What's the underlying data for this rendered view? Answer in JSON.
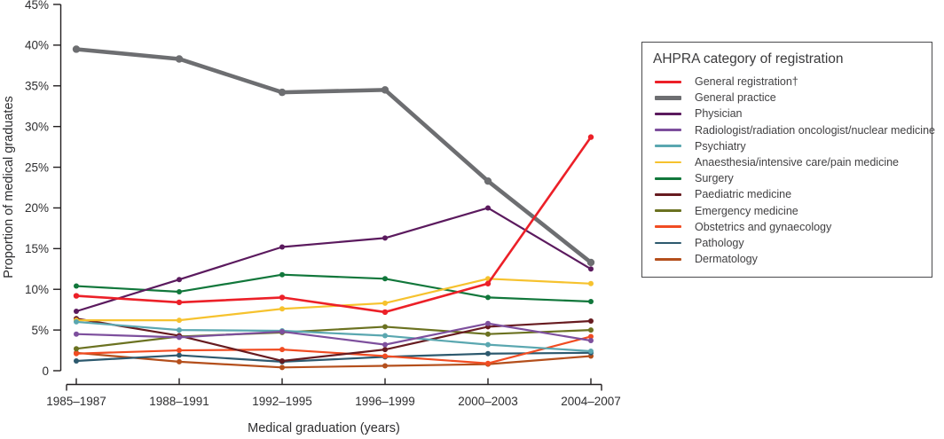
{
  "chart_data": {
    "type": "line",
    "title": "",
    "xlabel": "Medical graduation (years)",
    "ylabel": "Proportion of medical graduates",
    "categories": [
      "1985–1987",
      "1988–1991",
      "1992–1995",
      "1996–1999",
      "2000–2003",
      "2004–2007"
    ],
    "y_tick_labels": [
      "45%",
      "40%",
      "35%",
      "30%",
      "25%",
      "20%",
      "15%",
      "10%",
      "5%",
      "0"
    ],
    "ylim": [
      0,
      45
    ],
    "grid": false,
    "legend": {
      "title": "AHPRA category of registration",
      "position": "right"
    },
    "series": [
      {
        "name": "General registration†",
        "color": "#ec2028",
        "width": 2.6,
        "marker": 3.2,
        "values": [
          9.2,
          8.4,
          9.0,
          7.2,
          10.7,
          28.7
        ]
      },
      {
        "name": "General practice",
        "color": "#6d6e71",
        "width": 4.6,
        "marker": 4.2,
        "values": [
          39.5,
          38.3,
          34.2,
          34.5,
          23.3,
          13.3
        ]
      },
      {
        "name": "Physician",
        "color": "#5b1a5e",
        "width": 2.2,
        "marker": 3,
        "values": [
          7.3,
          11.2,
          15.2,
          16.3,
          20.0,
          12.5
        ]
      },
      {
        "name": "Radiologist/radiation oncologist/nuclear medicine",
        "color": "#7d4f9d",
        "width": 2.2,
        "marker": 3,
        "values": [
          4.5,
          4.1,
          4.8,
          3.2,
          5.8,
          3.7
        ]
      },
      {
        "name": "Psychiatry",
        "color": "#5aa7b0",
        "width": 2.2,
        "marker": 3,
        "values": [
          6.0,
          5.0,
          4.9,
          4.3,
          3.2,
          2.4
        ]
      },
      {
        "name": "Anaesthesia/intensive care/pain medicine",
        "color": "#f6c22e",
        "width": 2.2,
        "marker": 3,
        "values": [
          6.2,
          6.2,
          7.6,
          8.3,
          11.3,
          10.7
        ]
      },
      {
        "name": "Surgery",
        "color": "#11773b",
        "width": 2.2,
        "marker": 3,
        "values": [
          10.4,
          9.7,
          11.8,
          11.3,
          9.0,
          8.5
        ]
      },
      {
        "name": "Paediatric medicine",
        "color": "#671b20",
        "width": 2.2,
        "marker": 3,
        "values": [
          6.4,
          4.3,
          1.2,
          2.6,
          5.4,
          6.1
        ]
      },
      {
        "name": "Emergency medicine",
        "color": "#6b7221",
        "width": 2.2,
        "marker": 3,
        "values": [
          2.7,
          4.2,
          4.7,
          5.4,
          4.5,
          5.0
        ]
      },
      {
        "name": "Obstetrics and gynaecology",
        "color": "#f14c22",
        "width": 2.2,
        "marker": 3,
        "values": [
          2.1,
          2.5,
          2.6,
          1.8,
          0.9,
          4.2
        ]
      },
      {
        "name": "Pathology",
        "color": "#2d596e",
        "width": 2.2,
        "marker": 3,
        "values": [
          1.2,
          1.9,
          1.1,
          1.7,
          2.1,
          2.2
        ]
      },
      {
        "name": "Dermatology",
        "color": "#b44f1c",
        "width": 2.2,
        "marker": 3,
        "values": [
          2.2,
          1.1,
          0.4,
          0.6,
          0.8,
          1.8
        ]
      }
    ]
  }
}
